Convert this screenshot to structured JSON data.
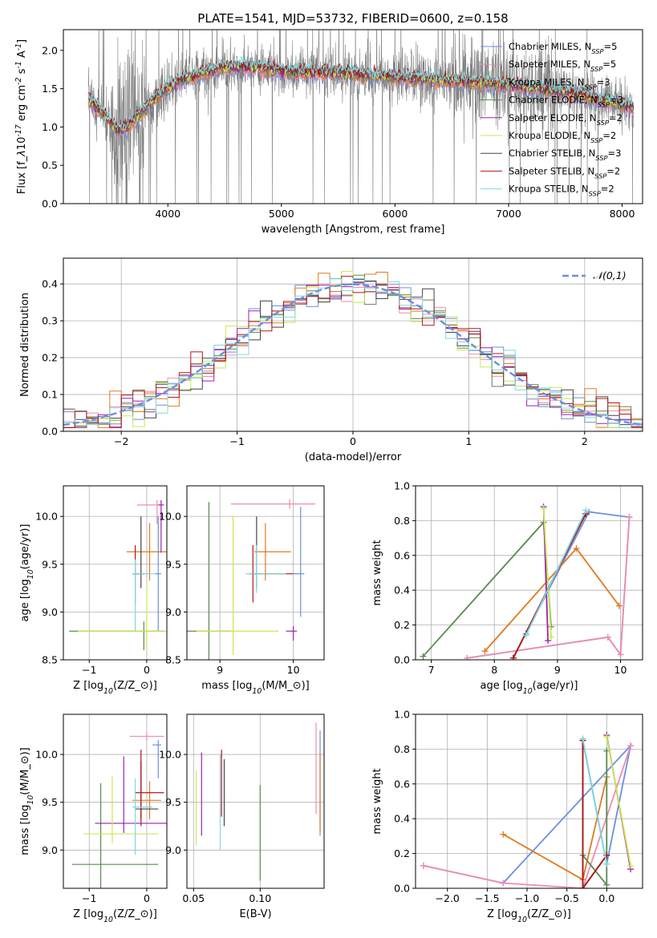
{
  "figure_title": "PLATE=1541, MJD=53732, FIBERID=0600, z=0.158",
  "colors": {
    "data": "#808080",
    "grid": "#b0b0b0",
    "models": [
      "#6b8fe0",
      "#f08cb0",
      "#e07a20",
      "#5a8a50",
      "#9a20b0",
      "#c8e850",
      "#444444",
      "#b01818",
      "#80d8e0"
    ]
  },
  "chart_data": [
    {
      "id": "spectrum",
      "type": "line",
      "xlabel": "wavelength [Angstrom, rest frame]",
      "ylabel": "Flux [f$_\\lambda$10$^{-17}$ erg cm$^{-2}$ s$^{-1}$ A$^{-1}$]",
      "xlim": [
        3080,
        8180
      ],
      "ylim": [
        0,
        2.27
      ],
      "xticks": [
        4000,
        5000,
        6000,
        7000,
        8000
      ],
      "yticks": [
        0.0,
        0.5,
        1.0,
        1.5,
        2.0
      ],
      "grid": false,
      "legend": "top-right",
      "data_range": [
        3300,
        8100
      ],
      "model_shape": [
        [
          3300,
          1.35
        ],
        [
          3450,
          1.15
        ],
        [
          3550,
          0.95
        ],
        [
          3650,
          1.0
        ],
        [
          3800,
          1.25
        ],
        [
          3950,
          1.45
        ],
        [
          4100,
          1.6
        ],
        [
          4300,
          1.7
        ],
        [
          4500,
          1.78
        ],
        [
          4800,
          1.78
        ],
        [
          5000,
          1.72
        ],
        [
          5500,
          1.7
        ],
        [
          6000,
          1.65
        ],
        [
          6500,
          1.6
        ],
        [
          7000,
          1.55
        ],
        [
          7500,
          1.45
        ],
        [
          8000,
          1.3
        ],
        [
          8100,
          1.25
        ]
      ],
      "series": [
        {
          "name": "Chabrier MILES, N$_{SSP}$=5"
        },
        {
          "name": "Salpeter MILES, N$_{SSP}$=5"
        },
        {
          "name": "Kroupa MILES, N$_{SSP}$=3"
        },
        {
          "name": "Chabrier ELODIE, N$_{SSP}$=3"
        },
        {
          "name": "Salpeter ELODIE, N$_{SSP}$=2"
        },
        {
          "name": "Kroupa ELODIE, N$_{SSP}$=2"
        },
        {
          "name": "Chabrier STELIB, N$_{SSP}$=3"
        },
        {
          "name": "Salpeter STELIB, N$_{SSP}$=2"
        },
        {
          "name": "Kroupa STELIB, N$_{SSP}$=2"
        }
      ]
    },
    {
      "id": "residuals",
      "type": "line",
      "xlabel": "(data-model)/error",
      "ylabel": "Normed distribution",
      "xlim": [
        -2.5,
        2.5
      ],
      "ylim": [
        0,
        0.47
      ],
      "xticks": [
        -2,
        -1,
        0,
        1,
        2
      ],
      "yticks": [
        0.0,
        0.1,
        0.2,
        0.3,
        0.4
      ],
      "grid": true,
      "legend": "top-right",
      "reference": {
        "name": "$\\mathcal{N}(0,1)$",
        "mean": 0,
        "sigma": 1
      },
      "bin_edges": [
        -2.5,
        2.5
      ],
      "bins": 50
    },
    {
      "id": "age_vs_Z",
      "type": "scatter",
      "xlabel": "Z [log$_{10}$(Z/Z$_\\odot$)]",
      "ylabel": "age  [log$_{10}$(age/yr)]",
      "xlim": [
        -1.45,
        0.35
      ],
      "ylim": [
        8.5,
        10.32
      ],
      "xticks": [
        -1,
        0
      ],
      "yticks": [
        8.5,
        9.0,
        9.5,
        10.0
      ],
      "grid": true,
      "points": [
        {
          "s": 0,
          "x": 0.2,
          "xerr": [
            0.05,
            0.05
          ],
          "y": 9.4,
          "yerr": [
            0.6,
            0.6
          ]
        },
        {
          "s": 1,
          "x": 0.18,
          "xerr": [
            0.35,
            0.05
          ],
          "y": 10.12,
          "yerr": [
            0.2,
            0.05
          ]
        },
        {
          "s": 2,
          "x": 0.05,
          "xerr": [
            0.4,
            0.3
          ],
          "y": 9.63,
          "yerr": [
            0.3,
            0.3
          ]
        },
        {
          "s": 3,
          "x": -0.05,
          "xerr": [
            1.3,
            0.35
          ],
          "y": 8.8,
          "yerr": [
            0.2,
            0.1
          ]
        },
        {
          "s": 4,
          "x": 0.25,
          "xerr": [
            0.05,
            0.05
          ],
          "y": 10.12,
          "yerr": [
            0.5,
            0.05
          ]
        },
        {
          "s": 5,
          "x": 0.0,
          "xerr": [
            1.2,
            0.35
          ],
          "y": 8.8,
          "yerr": [
            0.2,
            0.5
          ]
        },
        {
          "s": 6,
          "x": -0.1,
          "xerr": [
            0.1,
            0.05
          ],
          "y": 9.4,
          "yerr": [
            0.15,
            0.6
          ]
        },
        {
          "s": 7,
          "x": -0.2,
          "xerr": [
            0.05,
            0.05
          ],
          "y": 9.4,
          "yerr": [
            0.32,
            0.3
          ]
        },
        {
          "s": 8,
          "x": -0.2,
          "xerr": [
            0.05,
            0.35
          ],
          "y": 9.4,
          "yerr": [
            0.6,
            0.15
          ]
        }
      ]
    },
    {
      "id": "age_vs_mass",
      "type": "scatter",
      "xlabel": "mass [log$_{10}$(M/M$_\\odot$)]",
      "ylabel": "",
      "xlim": [
        8.55,
        10.42
      ],
      "ylim": [
        8.5,
        10.32
      ],
      "xticks": [
        9,
        10
      ],
      "yticks": [
        8.5,
        9.0,
        9.5,
        10.0
      ],
      "grid": true,
      "points": [
        {
          "s": 0,
          "x": 10.1,
          "xerr": [
            0.1,
            0.05
          ],
          "y": 9.4,
          "yerr": [
            0.45,
            0.7
          ]
        },
        {
          "s": 1,
          "x": 9.95,
          "xerr": [
            0.8,
            0.35
          ],
          "y": 10.13,
          "yerr": [
            0.05,
            0.05
          ]
        },
        {
          "s": 2,
          "x": 9.62,
          "xerr": [
            0.15,
            0.35
          ],
          "y": 9.63,
          "yerr": [
            0.3,
            0.3
          ]
        },
        {
          "s": 3,
          "x": 8.85,
          "xerr": [
            0.3,
            0.3
          ],
          "y": 8.8,
          "yerr": [
            0.55,
            1.35
          ]
        },
        {
          "s": 4,
          "x": 10.0,
          "xerr": [
            0.1,
            0.05
          ],
          "y": 8.8,
          "yerr": [
            0.1,
            0.05
          ]
        },
        {
          "s": 5,
          "x": 9.18,
          "xerr": [
            0.5,
            0.62
          ],
          "y": 8.8,
          "yerr": [
            0.25,
            1.2
          ]
        },
        {
          "s": 6,
          "x": 9.5,
          "xerr": [
            0.05,
            0.05
          ],
          "y": 9.4,
          "yerr": [
            0.15,
            0.6
          ]
        },
        {
          "s": 7,
          "x": 9.45,
          "xerr": [
            0.05,
            0.55
          ],
          "y": 9.4,
          "yerr": [
            0.3,
            0.3
          ]
        },
        {
          "s": 8,
          "x": 9.5,
          "xerr": [
            0.15,
            0.4
          ],
          "y": 9.4,
          "yerr": [
            0.2,
            0.3
          ]
        }
      ]
    },
    {
      "id": "weight_vs_age",
      "type": "line",
      "xlabel": "age  [log$_{10}$(age/yr)]",
      "ylabel": "mass weight",
      "xlim": [
        6.75,
        10.35
      ],
      "ylim": [
        0,
        1.0
      ],
      "xticks": [
        7,
        8,
        9,
        10
      ],
      "yticks": [
        0.0,
        0.2,
        0.4,
        0.6,
        0.8,
        1.0
      ],
      "grid": true,
      "series": [
        {
          "s": 0,
          "x": [
            7.57,
            9.8,
            10.0,
            10.14,
            9.5,
            8.5
          ],
          "y": [
            0.01,
            0.13,
            0.03,
            0.82,
            0.85,
            0.15
          ]
        },
        {
          "s": 1,
          "x": [
            7.57,
            9.8,
            10.0,
            10.14
          ],
          "y": [
            0.01,
            0.13,
            0.03,
            0.82
          ]
        },
        {
          "s": 2,
          "x": [
            7.85,
            9.3,
            9.98
          ],
          "y": [
            0.05,
            0.64,
            0.31
          ]
        },
        {
          "s": 3,
          "x": [
            6.87,
            8.78,
            8.9
          ],
          "y": [
            0.02,
            0.79,
            0.19
          ]
        },
        {
          "s": 4,
          "x": [
            8.78,
            8.85
          ],
          "y": [
            0.88,
            0.11
          ]
        },
        {
          "s": 5,
          "x": [
            8.78,
            8.9
          ],
          "y": [
            0.87,
            0.13
          ]
        },
        {
          "s": 6,
          "x": [
            8.3,
            9.45
          ],
          "y": [
            0.01,
            0.84
          ]
        },
        {
          "s": 7,
          "x": [
            8.3,
            9.45
          ],
          "y": [
            0.01,
            0.84
          ]
        },
        {
          "s": 8,
          "x": [
            8.5,
            9.45
          ],
          "y": [
            0.14,
            0.86
          ]
        }
      ]
    },
    {
      "id": "mass_vs_Z",
      "type": "scatter",
      "xlabel": "Z [log$_{10}$(Z/Z$_\\odot$)]",
      "ylabel": "mass [log$_{10}$(M/M$_\\odot$)]",
      "xlim": [
        -1.45,
        0.35
      ],
      "ylim": [
        8.6,
        10.42
      ],
      "xticks": [
        -1,
        0
      ],
      "yticks": [
        9.0,
        9.5,
        10.0
      ],
      "grid": true,
      "points": [
        {
          "s": 0,
          "x": 0.2,
          "xerr": [
            0.1,
            0.05
          ],
          "y": 10.1,
          "yerr": [
            0.35,
            0.05
          ]
        },
        {
          "s": 1,
          "x": 0.0,
          "xerr": [
            0.3,
            0.3
          ],
          "y": 10.19,
          "yerr": [
            0.05,
            0.05
          ]
        },
        {
          "s": 2,
          "x": 0.05,
          "xerr": [
            0.3,
            0.2
          ],
          "y": 9.52,
          "yerr": [
            0.2,
            0.2
          ]
        },
        {
          "s": 3,
          "x": -0.8,
          "xerr": [
            0.5,
            1.0
          ],
          "y": 8.85,
          "yerr": [
            0.25,
            0.85
          ]
        },
        {
          "s": 4,
          "x": -0.4,
          "xerr": [
            0.5,
            1.1
          ],
          "y": 9.28,
          "yerr": [
            0.1,
            0.7
          ]
        },
        {
          "s": 5,
          "x": -0.6,
          "xerr": [
            0.5,
            0.8
          ],
          "y": 9.17,
          "yerr": [
            0.1,
            0.6
          ]
        },
        {
          "s": 6,
          "x": -0.1,
          "xerr": [
            0.1,
            0.3
          ],
          "y": 9.43,
          "yerr": [
            0.1,
            0.5
          ]
        },
        {
          "s": 7,
          "x": -0.1,
          "xerr": [
            0.1,
            0.4
          ],
          "y": 9.6,
          "yerr": [
            0.35,
            0.45
          ]
        },
        {
          "s": 8,
          "x": -0.2,
          "xerr": [
            0.05,
            0.3
          ],
          "y": 9.45,
          "yerr": [
            0.5,
            0.3
          ]
        }
      ]
    },
    {
      "id": "mass_vs_ebv",
      "type": "scatter",
      "xlabel": "E(B-V)",
      "ylabel": "",
      "xlim": [
        0.045,
        0.148
      ],
      "ylim": [
        8.6,
        10.42
      ],
      "xticks": [
        0.05,
        0.1
      ],
      "xtick_labels": [
        "0.05",
        "0.10"
      ],
      "yticks": [
        9.0,
        9.5,
        10.0
      ],
      "grid": true,
      "points": [
        {
          "s": 0,
          "x": 0.145,
          "y": 9.7,
          "yerr": [
            0.55,
            0.55
          ]
        },
        {
          "s": 1,
          "x": 0.142,
          "y": 9.88,
          "yerr": [
            0.5,
            0.45
          ]
        },
        {
          "s": 2,
          "x": 0.145,
          "y": 9.6,
          "yerr": [
            0.4,
            0.4
          ]
        },
        {
          "s": 3,
          "x": 0.1,
          "y": 9.18,
          "yerr": [
            0.5,
            0.5
          ]
        },
        {
          "s": 4,
          "x": 0.056,
          "y": 9.6,
          "yerr": [
            0.45,
            0.42
          ]
        },
        {
          "s": 5,
          "x": 0.052,
          "y": 9.45,
          "yerr": [
            0.4,
            0.38
          ]
        },
        {
          "s": 6,
          "x": 0.073,
          "y": 9.6,
          "yerr": [
            0.35,
            0.35
          ]
        },
        {
          "s": 7,
          "x": 0.071,
          "y": 9.7,
          "yerr": [
            0.35,
            0.35
          ]
        },
        {
          "s": 8,
          "x": 0.07,
          "y": 9.5,
          "yerr": [
            0.5,
            0.5
          ]
        }
      ]
    },
    {
      "id": "weight_vs_Z",
      "type": "line",
      "xlabel": "Z [log$_{10}$(Z/Z$_\\odot$)]",
      "ylabel": "mass weight",
      "xlim": [
        -2.4,
        0.45
      ],
      "ylim": [
        0,
        1.0
      ],
      "xticks": [
        -2.0,
        -1.5,
        -1.0,
        -0.5,
        0.0
      ],
      "yticks": [
        0.0,
        0.2,
        0.4,
        0.6,
        0.8,
        1.0
      ],
      "grid": true,
      "series": [
        {
          "s": 0,
          "x": [
            -2.3,
            -1.3,
            0.3,
            0.0,
            -0.3
          ],
          "y": [
            0.13,
            0.03,
            0.82,
            0.14,
            0.85
          ]
        },
        {
          "s": 1,
          "x": [
            -2.3,
            -1.3,
            -0.3,
            0.3
          ],
          "y": [
            0.13,
            0.03,
            0.0,
            0.82
          ]
        },
        {
          "s": 2,
          "x": [
            -1.3,
            -0.3,
            0.0
          ],
          "y": [
            0.31,
            0.05,
            0.64
          ]
        },
        {
          "s": 3,
          "x": [
            -0.3,
            0.0,
            0.0
          ],
          "y": [
            0.19,
            0.02,
            0.79
          ]
        },
        {
          "s": 4,
          "x": [
            0.0,
            0.3
          ],
          "y": [
            0.88,
            0.11
          ]
        },
        {
          "s": 5,
          "x": [
            0.0,
            0.3
          ],
          "y": [
            0.87,
            0.13
          ]
        },
        {
          "s": 6,
          "x": [
            -0.3,
            -0.3,
            0.0
          ],
          "y": [
            0.85,
            0.0,
            0.19
          ]
        },
        {
          "s": 7,
          "x": [
            -0.3,
            -0.3,
            0.0
          ],
          "y": [
            0.85,
            0.0,
            0.19
          ]
        },
        {
          "s": 8,
          "x": [
            -0.3,
            0.0
          ],
          "y": [
            0.86,
            0.14
          ]
        }
      ]
    }
  ]
}
